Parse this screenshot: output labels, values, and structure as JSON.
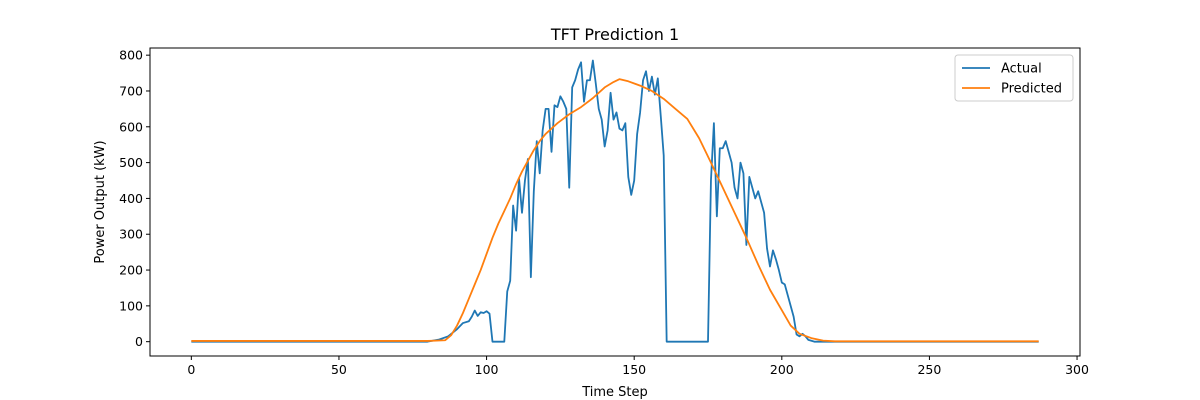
{
  "chart_data": {
    "type": "line",
    "title": "TFT Prediction 1",
    "xlabel": "Time Step",
    "ylabel": "Power Output (kW)",
    "xlim": [
      -14,
      301
    ],
    "ylim": [
      -40,
      820
    ],
    "xticks": [
      0,
      50,
      100,
      150,
      200,
      250,
      300
    ],
    "yticks": [
      0,
      100,
      200,
      300,
      400,
      500,
      600,
      700,
      800
    ],
    "legend": "top-right",
    "grid": false,
    "series": [
      {
        "name": "Actual",
        "color": "#1f77b4",
        "points": [
          [
            0,
            0
          ],
          [
            80,
            0
          ],
          [
            84,
            6
          ],
          [
            87,
            15
          ],
          [
            90,
            35
          ],
          [
            92,
            52
          ],
          [
            94,
            57
          ],
          [
            95,
            70
          ],
          [
            96,
            87
          ],
          [
            97,
            72
          ],
          [
            98,
            82
          ],
          [
            99,
            80
          ],
          [
            100,
            85
          ],
          [
            101,
            78
          ],
          [
            102,
            0
          ],
          [
            106,
            0
          ],
          [
            107,
            140
          ],
          [
            108,
            170
          ],
          [
            109,
            380
          ],
          [
            110,
            310
          ],
          [
            111,
            455
          ],
          [
            112,
            360
          ],
          [
            113,
            450
          ],
          [
            114,
            510
          ],
          [
            115,
            180
          ],
          [
            116,
            420
          ],
          [
            117,
            560
          ],
          [
            118,
            470
          ],
          [
            119,
            590
          ],
          [
            120,
            650
          ],
          [
            121,
            650
          ],
          [
            122,
            530
          ],
          [
            123,
            660
          ],
          [
            124,
            655
          ],
          [
            125,
            685
          ],
          [
            126,
            670
          ],
          [
            127,
            650
          ],
          [
            128,
            430
          ],
          [
            129,
            710
          ],
          [
            130,
            730
          ],
          [
            131,
            760
          ],
          [
            132,
            780
          ],
          [
            133,
            670
          ],
          [
            134,
            730
          ],
          [
            135,
            730
          ],
          [
            136,
            785
          ],
          [
            137,
            720
          ],
          [
            138,
            650
          ],
          [
            139,
            620
          ],
          [
            140,
            545
          ],
          [
            141,
            590
          ],
          [
            142,
            695
          ],
          [
            143,
            620
          ],
          [
            144,
            640
          ],
          [
            145,
            595
          ],
          [
            146,
            590
          ],
          [
            147,
            610
          ],
          [
            148,
            460
          ],
          [
            149,
            410
          ],
          [
            150,
            450
          ],
          [
            151,
            580
          ],
          [
            152,
            640
          ],
          [
            153,
            730
          ],
          [
            154,
            755
          ],
          [
            155,
            700
          ],
          [
            156,
            740
          ],
          [
            157,
            690
          ],
          [
            158,
            735
          ],
          [
            159,
            630
          ],
          [
            160,
            520
          ],
          [
            161,
            0
          ],
          [
            175,
            0
          ],
          [
            176,
            450
          ],
          [
            177,
            610
          ],
          [
            178,
            350
          ],
          [
            179,
            540
          ],
          [
            180,
            540
          ],
          [
            181,
            560
          ],
          [
            182,
            530
          ],
          [
            183,
            500
          ],
          [
            184,
            430
          ],
          [
            185,
            400
          ],
          [
            186,
            500
          ],
          [
            187,
            470
          ],
          [
            188,
            270
          ],
          [
            189,
            460
          ],
          [
            190,
            430
          ],
          [
            191,
            400
          ],
          [
            192,
            420
          ],
          [
            193,
            390
          ],
          [
            194,
            360
          ],
          [
            195,
            260
          ],
          [
            196,
            210
          ],
          [
            197,
            255
          ],
          [
            198,
            230
          ],
          [
            199,
            200
          ],
          [
            200,
            165
          ],
          [
            201,
            160
          ],
          [
            202,
            130
          ],
          [
            203,
            100
          ],
          [
            204,
            70
          ],
          [
            205,
            20
          ],
          [
            206,
            15
          ],
          [
            207,
            22
          ],
          [
            208,
            15
          ],
          [
            209,
            5
          ],
          [
            211,
            0
          ],
          [
            287,
            0
          ]
        ]
      },
      {
        "name": "Predicted",
        "color": "#ff7f0e",
        "points": [
          [
            0,
            2
          ],
          [
            80,
            2
          ],
          [
            83,
            3
          ],
          [
            86,
            4
          ],
          [
            88,
            18
          ],
          [
            90,
            45
          ],
          [
            92,
            80
          ],
          [
            94,
            120
          ],
          [
            96,
            160
          ],
          [
            98,
            200
          ],
          [
            100,
            245
          ],
          [
            102,
            290
          ],
          [
            104,
            330
          ],
          [
            106,
            365
          ],
          [
            108,
            400
          ],
          [
            110,
            440
          ],
          [
            112,
            475
          ],
          [
            114,
            505
          ],
          [
            116,
            535
          ],
          [
            118,
            560
          ],
          [
            120,
            580
          ],
          [
            124,
            610
          ],
          [
            128,
            635
          ],
          [
            132,
            655
          ],
          [
            136,
            680
          ],
          [
            140,
            710
          ],
          [
            143,
            725
          ],
          [
            145,
            733
          ],
          [
            148,
            727
          ],
          [
            152,
            715
          ],
          [
            156,
            700
          ],
          [
            160,
            678
          ],
          [
            164,
            650
          ],
          [
            168,
            622
          ],
          [
            172,
            568
          ],
          [
            176,
            500
          ],
          [
            180,
            430
          ],
          [
            184,
            360
          ],
          [
            188,
            290
          ],
          [
            192,
            215
          ],
          [
            196,
            145
          ],
          [
            200,
            88
          ],
          [
            203,
            45
          ],
          [
            206,
            22
          ],
          [
            210,
            10
          ],
          [
            214,
            3
          ],
          [
            218,
            1
          ],
          [
            287,
            1
          ]
        ]
      }
    ]
  }
}
